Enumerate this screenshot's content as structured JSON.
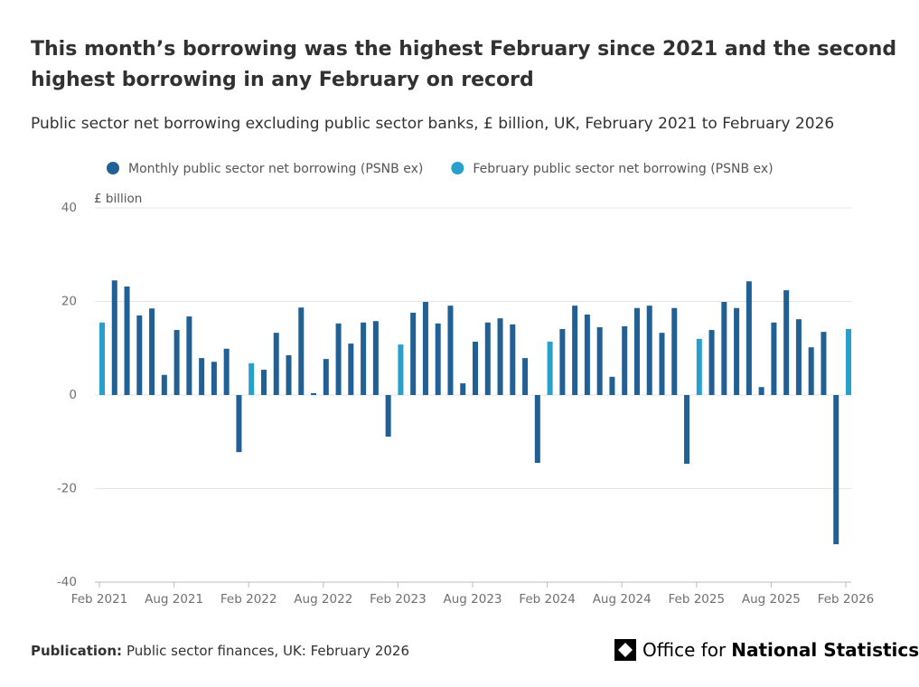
{
  "chart_data": {
    "type": "bar",
    "title": [
      "This month’s borrowing was the highest February since 2021 and the second",
      "highest borrowing in any February on record"
    ],
    "subtitle": "Public sector net borrowing excluding public sector banks, £ billion, UK, February 2021 to February 2026",
    "y_label": "£ billion",
    "categories": [
      "Feb 2021",
      null,
      null,
      null,
      null,
      null,
      "Aug 2021",
      null,
      null,
      null,
      null,
      null,
      "Feb 2022",
      null,
      null,
      null,
      null,
      null,
      "Aug 2022",
      null,
      null,
      null,
      null,
      null,
      "Feb 2023",
      null,
      null,
      null,
      null,
      null,
      "Aug 2023",
      null,
      null,
      null,
      null,
      null,
      "Feb 2024",
      null,
      null,
      null,
      null,
      null,
      "Aug 2024",
      null,
      null,
      null,
      null,
      null,
      "Feb 2025",
      null,
      null,
      null,
      null,
      null,
      "Aug 2025",
      null,
      null,
      null,
      null,
      null,
      "Feb 2026"
    ],
    "series": [
      {
        "name": "Monthly public sector net borrowing (PSNB ex)",
        "color": "#206095",
        "values": [
          null,
          24.5,
          23.2,
          17.0,
          18.5,
          4.3,
          13.9,
          16.8,
          7.9,
          7.1,
          9.9,
          -12.2,
          null,
          5.4,
          13.3,
          8.5,
          18.7,
          0.4,
          7.7,
          15.3,
          11.0,
          15.5,
          15.8,
          -8.9,
          null,
          17.6,
          19.9,
          15.3,
          19.1,
          2.5,
          11.4,
          15.5,
          16.4,
          15.1,
          7.9,
          -14.5,
          null,
          14.1,
          19.1,
          17.2,
          14.5,
          3.9,
          14.7,
          18.6,
          19.1,
          13.3,
          18.6,
          -14.7,
          null,
          13.9,
          19.9,
          18.6,
          24.3,
          1.7,
          15.5,
          22.4,
          16.2,
          10.2,
          13.5,
          -31.9,
          null
        ]
      },
      {
        "name": "February public sector net borrowing (PSNB ex)",
        "color": "#27a0cc",
        "values": [
          15.5,
          null,
          null,
          null,
          null,
          null,
          null,
          null,
          null,
          null,
          null,
          null,
          6.8,
          null,
          null,
          null,
          null,
          null,
          null,
          null,
          null,
          null,
          null,
          null,
          10.8,
          null,
          null,
          null,
          null,
          null,
          null,
          null,
          null,
          null,
          null,
          null,
          11.4,
          null,
          null,
          null,
          null,
          null,
          null,
          null,
          null,
          null,
          null,
          null,
          12.0,
          null,
          null,
          null,
          null,
          null,
          null,
          null,
          null,
          null,
          null,
          null,
          14.1
        ]
      }
    ],
    "ylim": [
      -40,
      40
    ],
    "yticks": [
      40,
      20,
      0,
      -20,
      -40
    ],
    "grid": true
  },
  "footer": {
    "publication_label": "Publication:",
    "publication": "Public sector finances, UK: February 2026",
    "logo_text": "Office for",
    "logo_bold": "National Statistics"
  }
}
